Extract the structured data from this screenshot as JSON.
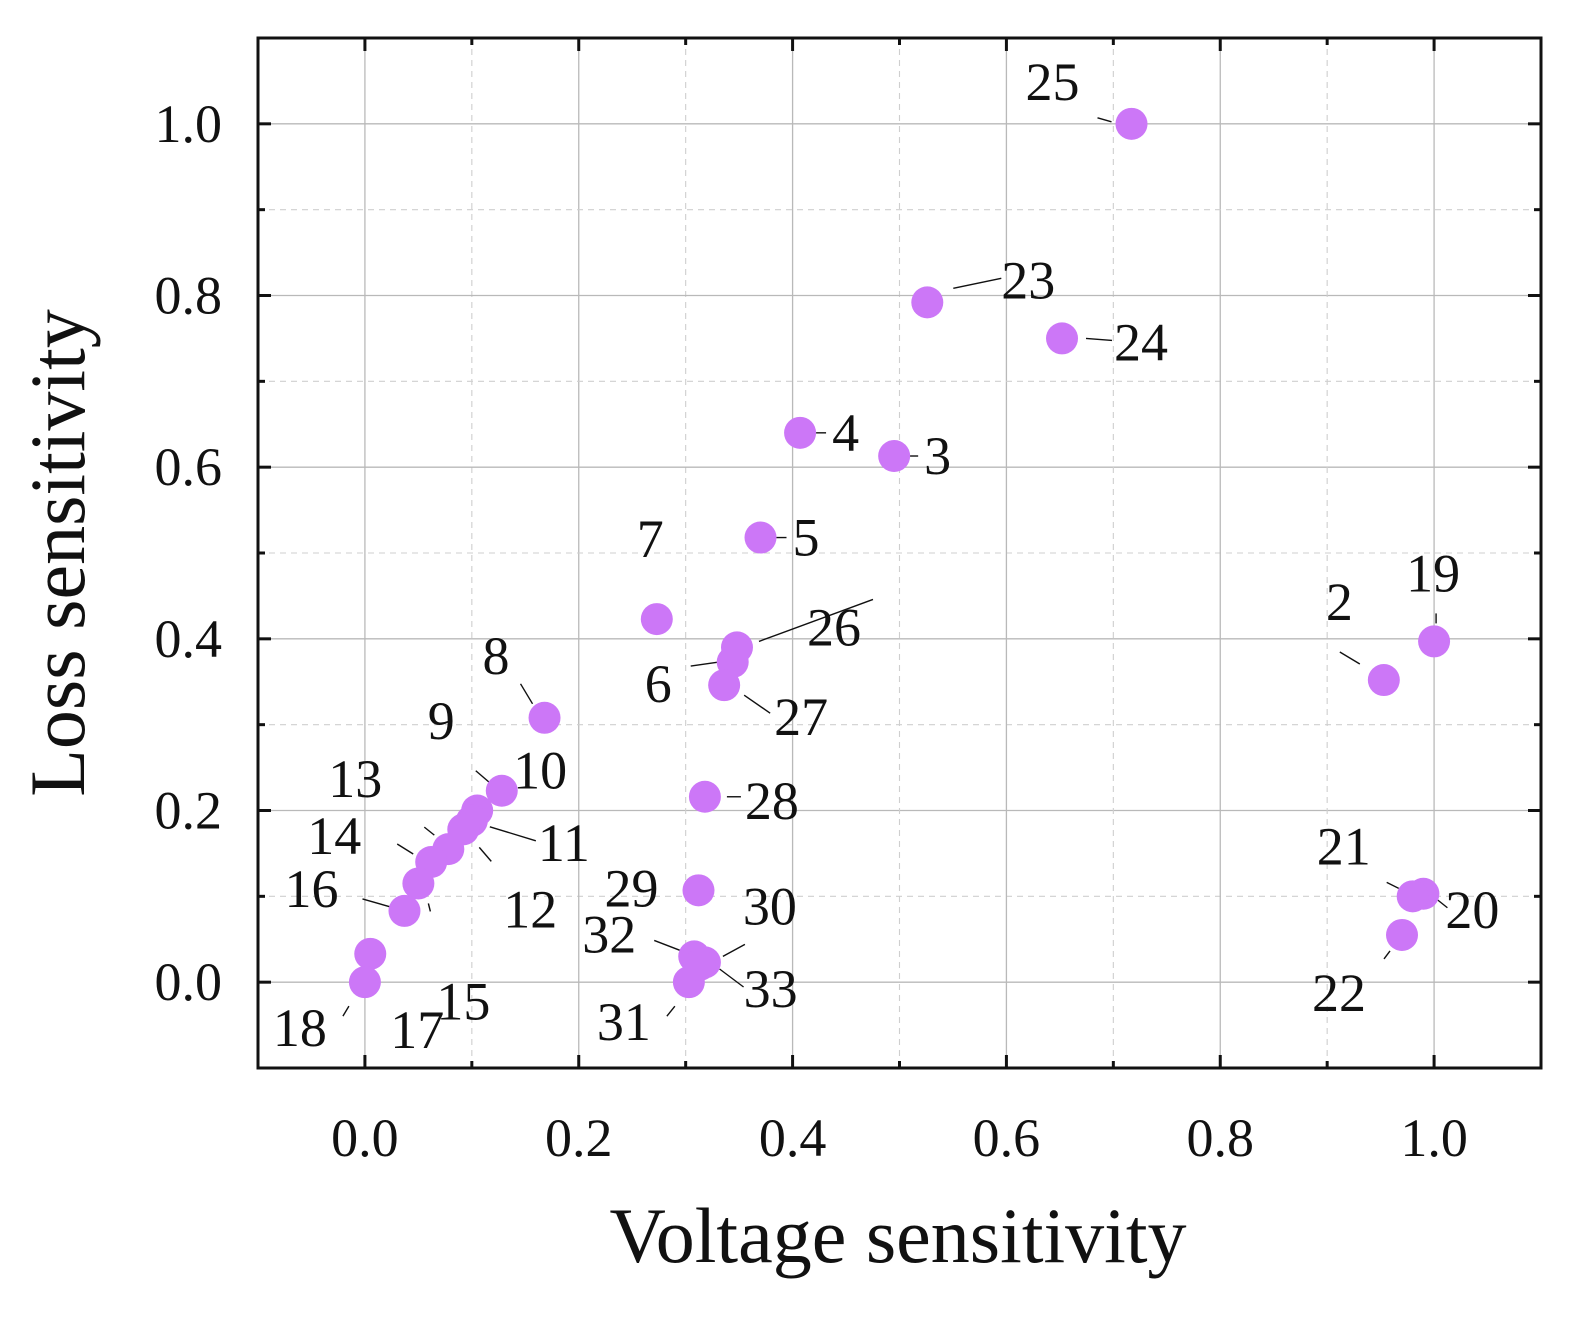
{
  "chart_data": {
    "type": "scatter",
    "title": "",
    "xlabel": "Voltage sensitivity",
    "ylabel": "Loss sensitivity",
    "xlim": [
      -0.1,
      1.1
    ],
    "ylim": [
      -0.1,
      1.1
    ],
    "x_ticks": [
      "0.0",
      "0.2",
      "0.4",
      "0.6",
      "0.8",
      "1.0"
    ],
    "y_ticks": [
      "0.0",
      "0.2",
      "0.4",
      "0.6",
      "0.8",
      "1.0"
    ],
    "grid": true,
    "marker_color": "#cc77f7",
    "points": [
      {
        "label": "2",
        "x": 0.953,
        "y": 0.352
      },
      {
        "label": "3",
        "x": 0.495,
        "y": 0.613
      },
      {
        "label": "4",
        "x": 0.407,
        "y": 0.64
      },
      {
        "label": "5",
        "x": 0.37,
        "y": 0.518
      },
      {
        "label": "6",
        "x": 0.344,
        "y": 0.373
      },
      {
        "label": "7",
        "x": 0.273,
        "y": 0.423
      },
      {
        "label": "8",
        "x": 0.168,
        "y": 0.308
      },
      {
        "label": "9",
        "x": 0.128,
        "y": 0.223
      },
      {
        "label": "10",
        "x": 0.105,
        "y": 0.2
      },
      {
        "label": "11",
        "x": 0.1,
        "y": 0.188
      },
      {
        "label": "12",
        "x": 0.092,
        "y": 0.178
      },
      {
        "label": "13",
        "x": 0.078,
        "y": 0.155
      },
      {
        "label": "14",
        "x": 0.062,
        "y": 0.14
      },
      {
        "label": "15",
        "x": 0.05,
        "y": 0.115
      },
      {
        "label": "16",
        "x": 0.037,
        "y": 0.083
      },
      {
        "label": "17",
        "x": 0.005,
        "y": 0.033
      },
      {
        "label": "18",
        "x": 0.0,
        "y": 0.0
      },
      {
        "label": "19",
        "x": 1.0,
        "y": 0.397
      },
      {
        "label": "20",
        "x": 0.99,
        "y": 0.103
      },
      {
        "label": "21",
        "x": 0.98,
        "y": 0.1
      },
      {
        "label": "22",
        "x": 0.97,
        "y": 0.055
      },
      {
        "label": "23",
        "x": 0.526,
        "y": 0.792
      },
      {
        "label": "24",
        "x": 0.652,
        "y": 0.75
      },
      {
        "label": "25",
        "x": 0.717,
        "y": 1.0
      },
      {
        "label": "26",
        "x": 0.348,
        "y": 0.39
      },
      {
        "label": "27",
        "x": 0.336,
        "y": 0.346
      },
      {
        "label": "28",
        "x": 0.318,
        "y": 0.216
      },
      {
        "label": "29",
        "x": 0.312,
        "y": 0.107
      },
      {
        "label": "30",
        "x": 0.318,
        "y": 0.023
      },
      {
        "label": "31",
        "x": 0.303,
        "y": 0.0
      },
      {
        "label": "32",
        "x": 0.308,
        "y": 0.03
      },
      {
        "label": "33",
        "x": 0.313,
        "y": 0.02
      }
    ]
  }
}
